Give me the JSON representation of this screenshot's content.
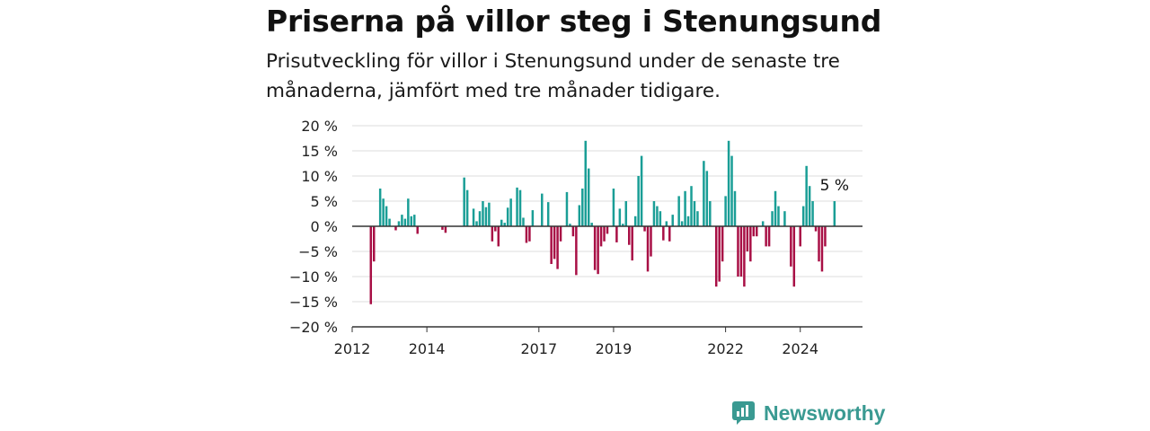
{
  "title": "Priserna på villor steg i Stenungsund",
  "subtitle": "Prisutveckling för villor i Stenungsund under de senaste tre månaderna, jämfört med tre månader tidigare.",
  "brand": {
    "name": "Newsworthy",
    "color": "#3a9a92",
    "icon": "newsworthy-logo-icon"
  },
  "colors": {
    "positive": "#1a9e96",
    "negative": "#a80f45",
    "grid": "#dddddd",
    "zero_line": "#333333"
  },
  "chart_data": {
    "type": "bar",
    "title": "Priserna på villor steg i Stenungsund",
    "xlabel": "",
    "ylabel": "",
    "ylim": [
      -20,
      20
    ],
    "y_ticks": [
      {
        "value": 20,
        "label": "20 %"
      },
      {
        "value": 15,
        "label": "15 %"
      },
      {
        "value": 10,
        "label": "10 %"
      },
      {
        "value": 5,
        "label": "5 %"
      },
      {
        "value": 0,
        "label": "0 %"
      },
      {
        "value": -5,
        "label": "−5 %"
      },
      {
        "value": -10,
        "label": "−10 %"
      },
      {
        "value": -15,
        "label": "−15 %"
      },
      {
        "value": -20,
        "label": "−20 %"
      }
    ],
    "x_range": [
      "2012-01",
      "2025-09"
    ],
    "x_ticks": [
      {
        "value": "2012-01",
        "label": "2012"
      },
      {
        "value": "2014-01",
        "label": "2014"
      },
      {
        "value": "2017-01",
        "label": "2017"
      },
      {
        "value": "2019-01",
        "label": "2019"
      },
      {
        "value": "2022-01",
        "label": "2022"
      },
      {
        "value": "2024-01",
        "label": "2024"
      }
    ],
    "grid": true,
    "annotation": {
      "month": "2024-12",
      "label": "5 %"
    },
    "points": [
      {
        "month": "2012-07",
        "value": -15.5
      },
      {
        "month": "2012-08",
        "value": -7
      },
      {
        "month": "2012-10",
        "value": 7.5
      },
      {
        "month": "2012-11",
        "value": 5.5
      },
      {
        "month": "2012-12",
        "value": 4
      },
      {
        "month": "2013-01",
        "value": 1.5
      },
      {
        "month": "2013-03",
        "value": -0.8
      },
      {
        "month": "2013-04",
        "value": 1
      },
      {
        "month": "2013-05",
        "value": 2.3
      },
      {
        "month": "2013-06",
        "value": 1.5
      },
      {
        "month": "2013-07",
        "value": 5.5
      },
      {
        "month": "2013-08",
        "value": 2
      },
      {
        "month": "2013-09",
        "value": 2.3
      },
      {
        "month": "2013-10",
        "value": -1.5
      },
      {
        "month": "2014-06",
        "value": -0.7
      },
      {
        "month": "2014-07",
        "value": -1.3
      },
      {
        "month": "2015-01",
        "value": 9.7
      },
      {
        "month": "2015-02",
        "value": 7.2
      },
      {
        "month": "2015-04",
        "value": 3.5
      },
      {
        "month": "2015-05",
        "value": 1
      },
      {
        "month": "2015-06",
        "value": 3
      },
      {
        "month": "2015-07",
        "value": 5
      },
      {
        "month": "2015-08",
        "value": 3.8
      },
      {
        "month": "2015-09",
        "value": 4.7
      },
      {
        "month": "2015-10",
        "value": -3
      },
      {
        "month": "2015-11",
        "value": -1
      },
      {
        "month": "2015-12",
        "value": -4
      },
      {
        "month": "2016-01",
        "value": 1.3
      },
      {
        "month": "2016-02",
        "value": 0.7
      },
      {
        "month": "2016-03",
        "value": 3.7
      },
      {
        "month": "2016-04",
        "value": 5.5
      },
      {
        "month": "2016-06",
        "value": 7.7
      },
      {
        "month": "2016-07",
        "value": 7.2
      },
      {
        "month": "2016-08",
        "value": 1.7
      },
      {
        "month": "2016-09",
        "value": -3.3
      },
      {
        "month": "2016-10",
        "value": -3
      },
      {
        "month": "2016-11",
        "value": 3.2
      },
      {
        "month": "2017-02",
        "value": 6.5
      },
      {
        "month": "2017-04",
        "value": 4.8
      },
      {
        "month": "2017-05",
        "value": -7.5
      },
      {
        "month": "2017-06",
        "value": -6.5
      },
      {
        "month": "2017-07",
        "value": -8.5
      },
      {
        "month": "2017-08",
        "value": -3
      },
      {
        "month": "2017-10",
        "value": 6.8
      },
      {
        "month": "2017-11",
        "value": 0.5
      },
      {
        "month": "2017-12",
        "value": -2
      },
      {
        "month": "2018-01",
        "value": -9.7
      },
      {
        "month": "2018-02",
        "value": 4.2
      },
      {
        "month": "2018-03",
        "value": 7.5
      },
      {
        "month": "2018-04",
        "value": 17
      },
      {
        "month": "2018-05",
        "value": 11.5
      },
      {
        "month": "2018-06",
        "value": 0.7
      },
      {
        "month": "2018-07",
        "value": -8.7
      },
      {
        "month": "2018-08",
        "value": -9.5
      },
      {
        "month": "2018-09",
        "value": -4
      },
      {
        "month": "2018-10",
        "value": -3
      },
      {
        "month": "2018-11",
        "value": -1.5
      },
      {
        "month": "2019-01",
        "value": 7.5
      },
      {
        "month": "2019-02",
        "value": -3.2
      },
      {
        "month": "2019-03",
        "value": 3.5
      },
      {
        "month": "2019-04",
        "value": 0.5
      },
      {
        "month": "2019-05",
        "value": 5
      },
      {
        "month": "2019-06",
        "value": -3.7
      },
      {
        "month": "2019-07",
        "value": -6.8
      },
      {
        "month": "2019-08",
        "value": 2
      },
      {
        "month": "2019-09",
        "value": 10
      },
      {
        "month": "2019-10",
        "value": 14
      },
      {
        "month": "2019-11",
        "value": -1
      },
      {
        "month": "2019-12",
        "value": -9
      },
      {
        "month": "2020-01",
        "value": -6
      },
      {
        "month": "2020-02",
        "value": 5
      },
      {
        "month": "2020-03",
        "value": 4
      },
      {
        "month": "2020-04",
        "value": 3
      },
      {
        "month": "2020-05",
        "value": -2.8
      },
      {
        "month": "2020-06",
        "value": 1
      },
      {
        "month": "2020-07",
        "value": -3
      },
      {
        "month": "2020-08",
        "value": 2.3
      },
      {
        "month": "2020-10",
        "value": 6
      },
      {
        "month": "2020-11",
        "value": 1
      },
      {
        "month": "2020-12",
        "value": 7
      },
      {
        "month": "2021-01",
        "value": 2
      },
      {
        "month": "2021-02",
        "value": 8
      },
      {
        "month": "2021-03",
        "value": 5
      },
      {
        "month": "2021-04",
        "value": 3
      },
      {
        "month": "2021-06",
        "value": 13
      },
      {
        "month": "2021-07",
        "value": 11
      },
      {
        "month": "2021-08",
        "value": 5
      },
      {
        "month": "2021-10",
        "value": -12
      },
      {
        "month": "2021-11",
        "value": -11
      },
      {
        "month": "2021-12",
        "value": -7
      },
      {
        "month": "2022-01",
        "value": 6
      },
      {
        "month": "2022-02",
        "value": 17
      },
      {
        "month": "2022-03",
        "value": 14
      },
      {
        "month": "2022-04",
        "value": 7
      },
      {
        "month": "2022-05",
        "value": -10
      },
      {
        "month": "2022-06",
        "value": -10
      },
      {
        "month": "2022-07",
        "value": -12
      },
      {
        "month": "2022-08",
        "value": -5
      },
      {
        "month": "2022-09",
        "value": -7
      },
      {
        "month": "2022-10",
        "value": -2
      },
      {
        "month": "2022-11",
        "value": -2
      },
      {
        "month": "2023-01",
        "value": 1
      },
      {
        "month": "2023-02",
        "value": -4
      },
      {
        "month": "2023-03",
        "value": -4
      },
      {
        "month": "2023-04",
        "value": 3
      },
      {
        "month": "2023-05",
        "value": 7
      },
      {
        "month": "2023-06",
        "value": 4
      },
      {
        "month": "2023-08",
        "value": 3
      },
      {
        "month": "2023-10",
        "value": -8
      },
      {
        "month": "2023-11",
        "value": -12
      },
      {
        "month": "2024-01",
        "value": -4
      },
      {
        "month": "2024-02",
        "value": 4
      },
      {
        "month": "2024-03",
        "value": 12
      },
      {
        "month": "2024-04",
        "value": 8
      },
      {
        "month": "2024-05",
        "value": 5
      },
      {
        "month": "2024-06",
        "value": -1
      },
      {
        "month": "2024-07",
        "value": -7
      },
      {
        "month": "2024-08",
        "value": -9
      },
      {
        "month": "2024-09",
        "value": -4
      },
      {
        "month": "2024-12",
        "value": 5
      }
    ]
  }
}
